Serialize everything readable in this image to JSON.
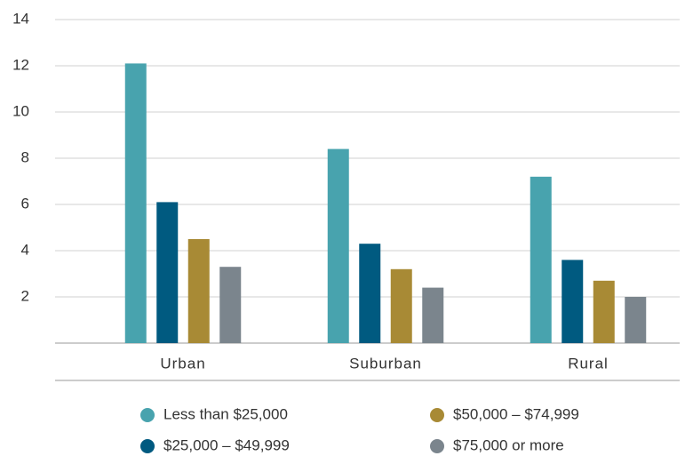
{
  "chart_data": {
    "type": "bar",
    "categories": [
      "Urban",
      "Suburban",
      "Rural"
    ],
    "series": [
      {
        "name": "Less than $25,000",
        "color": "#48a3ae",
        "values": [
          12.1,
          8.4,
          7.2
        ]
      },
      {
        "name": "$25,000 – $49,999",
        "color": "#005a80",
        "values": [
          6.1,
          4.3,
          3.6
        ]
      },
      {
        "name": "$50,000 – $74,999",
        "color": "#a88a35",
        "values": [
          4.5,
          3.2,
          2.7
        ]
      },
      {
        "name": "$75,000 or more",
        "color": "#7b858d",
        "values": [
          3.3,
          2.4,
          2.0
        ]
      }
    ],
    "ylim": [
      0,
      14
    ],
    "yticks": [
      2,
      4,
      6,
      8,
      10,
      12,
      14
    ],
    "grid": true
  }
}
